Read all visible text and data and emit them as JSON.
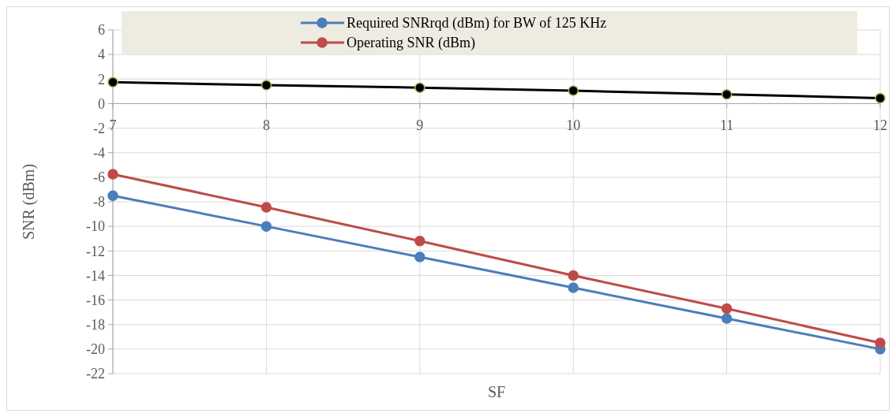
{
  "chart_data": {
    "type": "line",
    "xlabel": "SF",
    "ylabel": "SNR (dBm)",
    "x": [
      7,
      8,
      9,
      10,
      11,
      12
    ],
    "series": [
      {
        "name": "Required SNRrqd (dBm) for BW of 125 KHz",
        "color": "#4a7ebb",
        "values": [
          -7.5,
          -10,
          -12.5,
          -15,
          -17.5,
          -20
        ]
      },
      {
        "name": "Operating SNR (dBm)",
        "color": "#be4b48",
        "values": [
          -5.75,
          -8.45,
          -11.2,
          -14,
          -16.7,
          -19.5
        ]
      },
      {
        "color": "#000000",
        "values": [
          1.75,
          1.5,
          1.3,
          1.05,
          0.75,
          0.45
        ]
      }
    ],
    "xlim": [
      7,
      12
    ],
    "xticks": [
      7,
      8,
      9,
      10,
      11,
      12
    ],
    "ylim": [
      -22,
      6
    ],
    "yticks": [
      -22,
      -20,
      -18,
      -16,
      -14,
      -12,
      -10,
      -8,
      -6,
      -4,
      -2,
      0,
      2,
      4,
      6
    ],
    "grid": true,
    "legend": "top",
    "marker": "circle",
    "line_style": "solid"
  }
}
